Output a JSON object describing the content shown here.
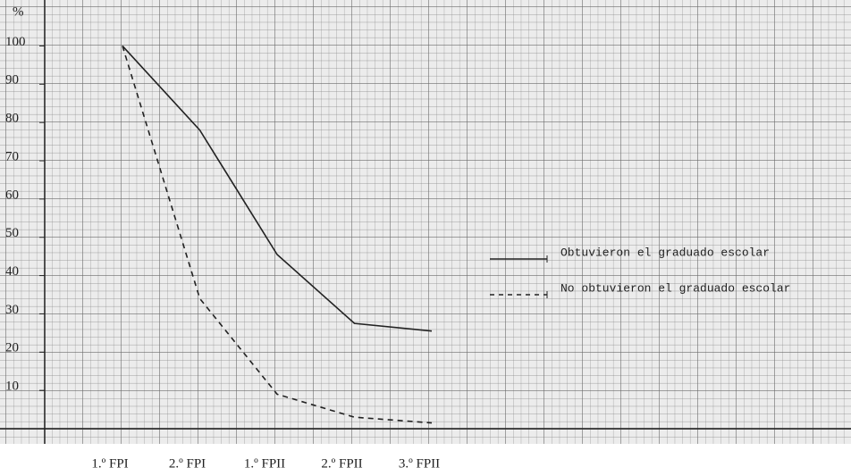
{
  "chart_data": {
    "type": "line",
    "y_label": "%",
    "categories": [
      "1.º FPI",
      "2.º FPI",
      "1.º FPII",
      "2.º FPII",
      "3.º FPII"
    ],
    "series": [
      {
        "name": "Obtuvieron el graduado escolar",
        "color": "#222222",
        "dash": false,
        "values": [
          100,
          78,
          45.5,
          27.5,
          25.5
        ]
      },
      {
        "name": "No obtuvieron el graduado escolar",
        "color": "#222222",
        "dash": true,
        "values": [
          100,
          34,
          9,
          3,
          1.5
        ]
      }
    ],
    "ylim": [
      0,
      112
    ],
    "yticks": [
      10,
      20,
      30,
      40,
      50,
      60,
      70,
      80,
      90,
      100
    ],
    "legend": "right"
  }
}
